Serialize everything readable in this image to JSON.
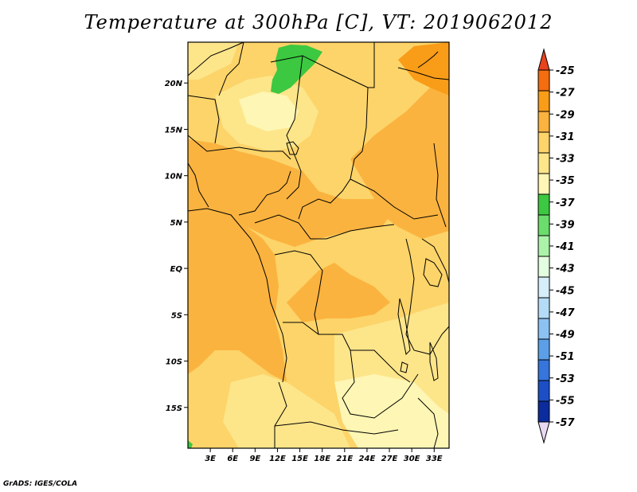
{
  "title": "Temperature at 300hPa [C], VT: 2019062012",
  "credit": "GrADS: IGES/COLA",
  "x_axis": {
    "labels": [
      "3E",
      "6E",
      "9E",
      "12E",
      "15E",
      "18E",
      "21E",
      "24E",
      "27E",
      "30E",
      "33E"
    ],
    "values": [
      3,
      6,
      9,
      12,
      15,
      18,
      21,
      24,
      27,
      30,
      33
    ]
  },
  "y_axis": {
    "labels": [
      "20N",
      "15N",
      "10N",
      "5N",
      "EQ",
      "5S",
      "10S",
      "15S"
    ],
    "values": [
      20,
      15,
      10,
      5,
      0,
      -5,
      -10,
      -15
    ]
  },
  "colorbar": {
    "labels": [
      "-25",
      "-27",
      "-29",
      "-31",
      "-33",
      "-35",
      "-37",
      "-39",
      "-41",
      "-43",
      "-45",
      "-47",
      "-49",
      "-51",
      "-53",
      "-55",
      "-57"
    ],
    "colors": [
      "#e8421e",
      "#f46d0f",
      "#f99c18",
      "#fbb33f",
      "#fcd469",
      "#fde58a",
      "#fef6b4",
      "#3cc840",
      "#6bdd6c",
      "#aaf3a9",
      "#e3fde0",
      "#d5eef9",
      "#b4dcf6",
      "#8cc2f2",
      "#5c9fe9",
      "#3575dc",
      "#1c4fc6",
      "#0c2c9d",
      "#e8d8f2"
    ]
  },
  "map_fill_colors": {
    "lightest": "#fef6b4",
    "light": "#fde58a",
    "medium": "#fcd469",
    "orange_light": "#fbb33f",
    "orange": "#f99c18",
    "green": "#3cc840"
  }
}
